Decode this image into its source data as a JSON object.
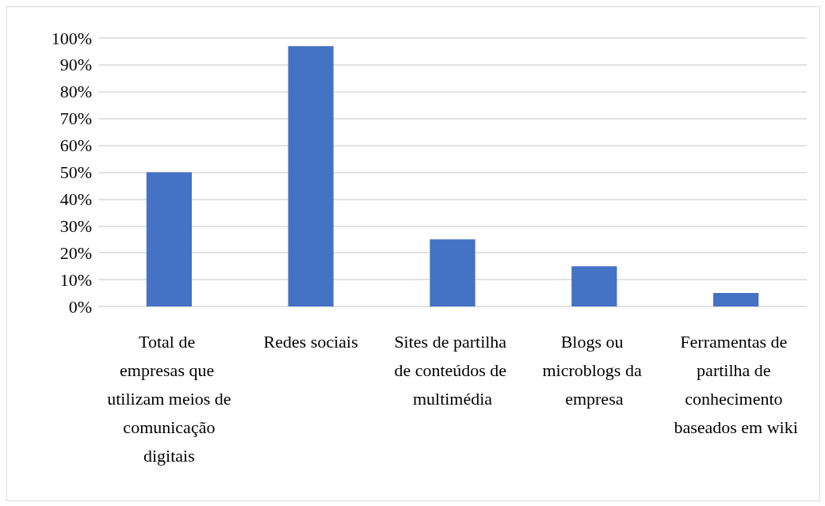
{
  "chart_data": {
    "type": "bar",
    "categories": [
      "Total de empresas que utilizam meios de comunicação digitais",
      "Redes sociais",
      "Sites de partilha de conteúdos de multimédia",
      "Blogs ou microblogs da empresa",
      "Ferramentas de partilha de conhecimento baseados em wiki"
    ],
    "values": [
      50,
      97,
      25,
      15,
      5
    ],
    "color": "#4472c4",
    "ylim": [
      0,
      100
    ],
    "yticks": [
      {
        "value": 0,
        "label": "0%"
      },
      {
        "value": 10,
        "label": "10%"
      },
      {
        "value": 20,
        "label": "20%"
      },
      {
        "value": 30,
        "label": "30%"
      },
      {
        "value": 40,
        "label": "40%"
      },
      {
        "value": 50,
        "label": "50%"
      },
      {
        "value": 60,
        "label": "60%"
      },
      {
        "value": 70,
        "label": "70%"
      },
      {
        "value": 80,
        "label": "80%"
      },
      {
        "value": 90,
        "label": "90%"
      },
      {
        "value": 100,
        "label": "100%"
      }
    ],
    "grid": "y"
  }
}
